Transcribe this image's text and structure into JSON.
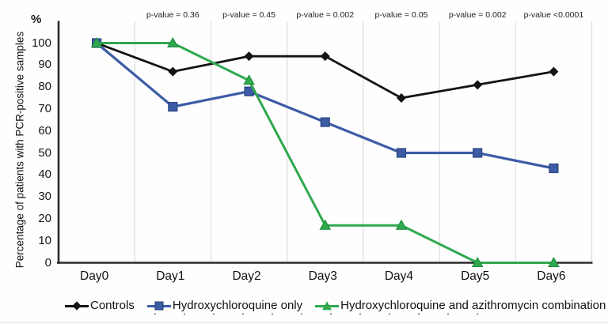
{
  "chart_data": {
    "type": "line",
    "title": "",
    "ylabel": "Percentage of patients with PCR-positive samples",
    "y_unit": "%",
    "xlabel": "",
    "categories": [
      "Day0",
      "Day1",
      "Day2",
      "Day3",
      "Day4",
      "Day5",
      "Day6"
    ],
    "ylim": [
      0,
      100
    ],
    "yticks": [
      0,
      10,
      20,
      30,
      40,
      50,
      60,
      70,
      80,
      90,
      100
    ],
    "grid": "vertical-category-boundaries",
    "legend_position": "bottom",
    "series": [
      {
        "name": "Controls",
        "marker": "diamond",
        "color": "#141414",
        "marker_border": "#141414",
        "line_width": 2.8,
        "values": [
          100,
          87,
          94,
          94,
          75,
          81,
          87
        ]
      },
      {
        "name": "Hydroxychloroquine only",
        "marker": "square",
        "color": "#3d5ca6",
        "marker_border": "#2a4580",
        "line_width": 3.2,
        "values": [
          100,
          71,
          78,
          64,
          50,
          50,
          43
        ]
      },
      {
        "name": "Hydroxychloroquine and azithromycin combination",
        "marker": "triangle",
        "color": "#2fa84e",
        "marker_border": "#1f8c3e",
        "line_width": 3.0,
        "values": [
          100,
          100,
          83,
          17,
          17,
          0,
          0
        ]
      }
    ],
    "annotations": [
      {
        "x": "Day1",
        "label": "p-value = 0.36"
      },
      {
        "x": "Day2",
        "label": "p-value = 0.45"
      },
      {
        "x": "Day3",
        "label": "p-value = 0.002"
      },
      {
        "x": "Day4",
        "label": "p-value = 0.05"
      },
      {
        "x": "Day5",
        "label": "p-value = 0.002"
      },
      {
        "x": "Day6",
        "label": "p-value <0.0001"
      }
    ],
    "colors": {
      "gridline": "#dcdcdc",
      "axis": "#2a2a2a",
      "background": "#fefefe"
    }
  }
}
